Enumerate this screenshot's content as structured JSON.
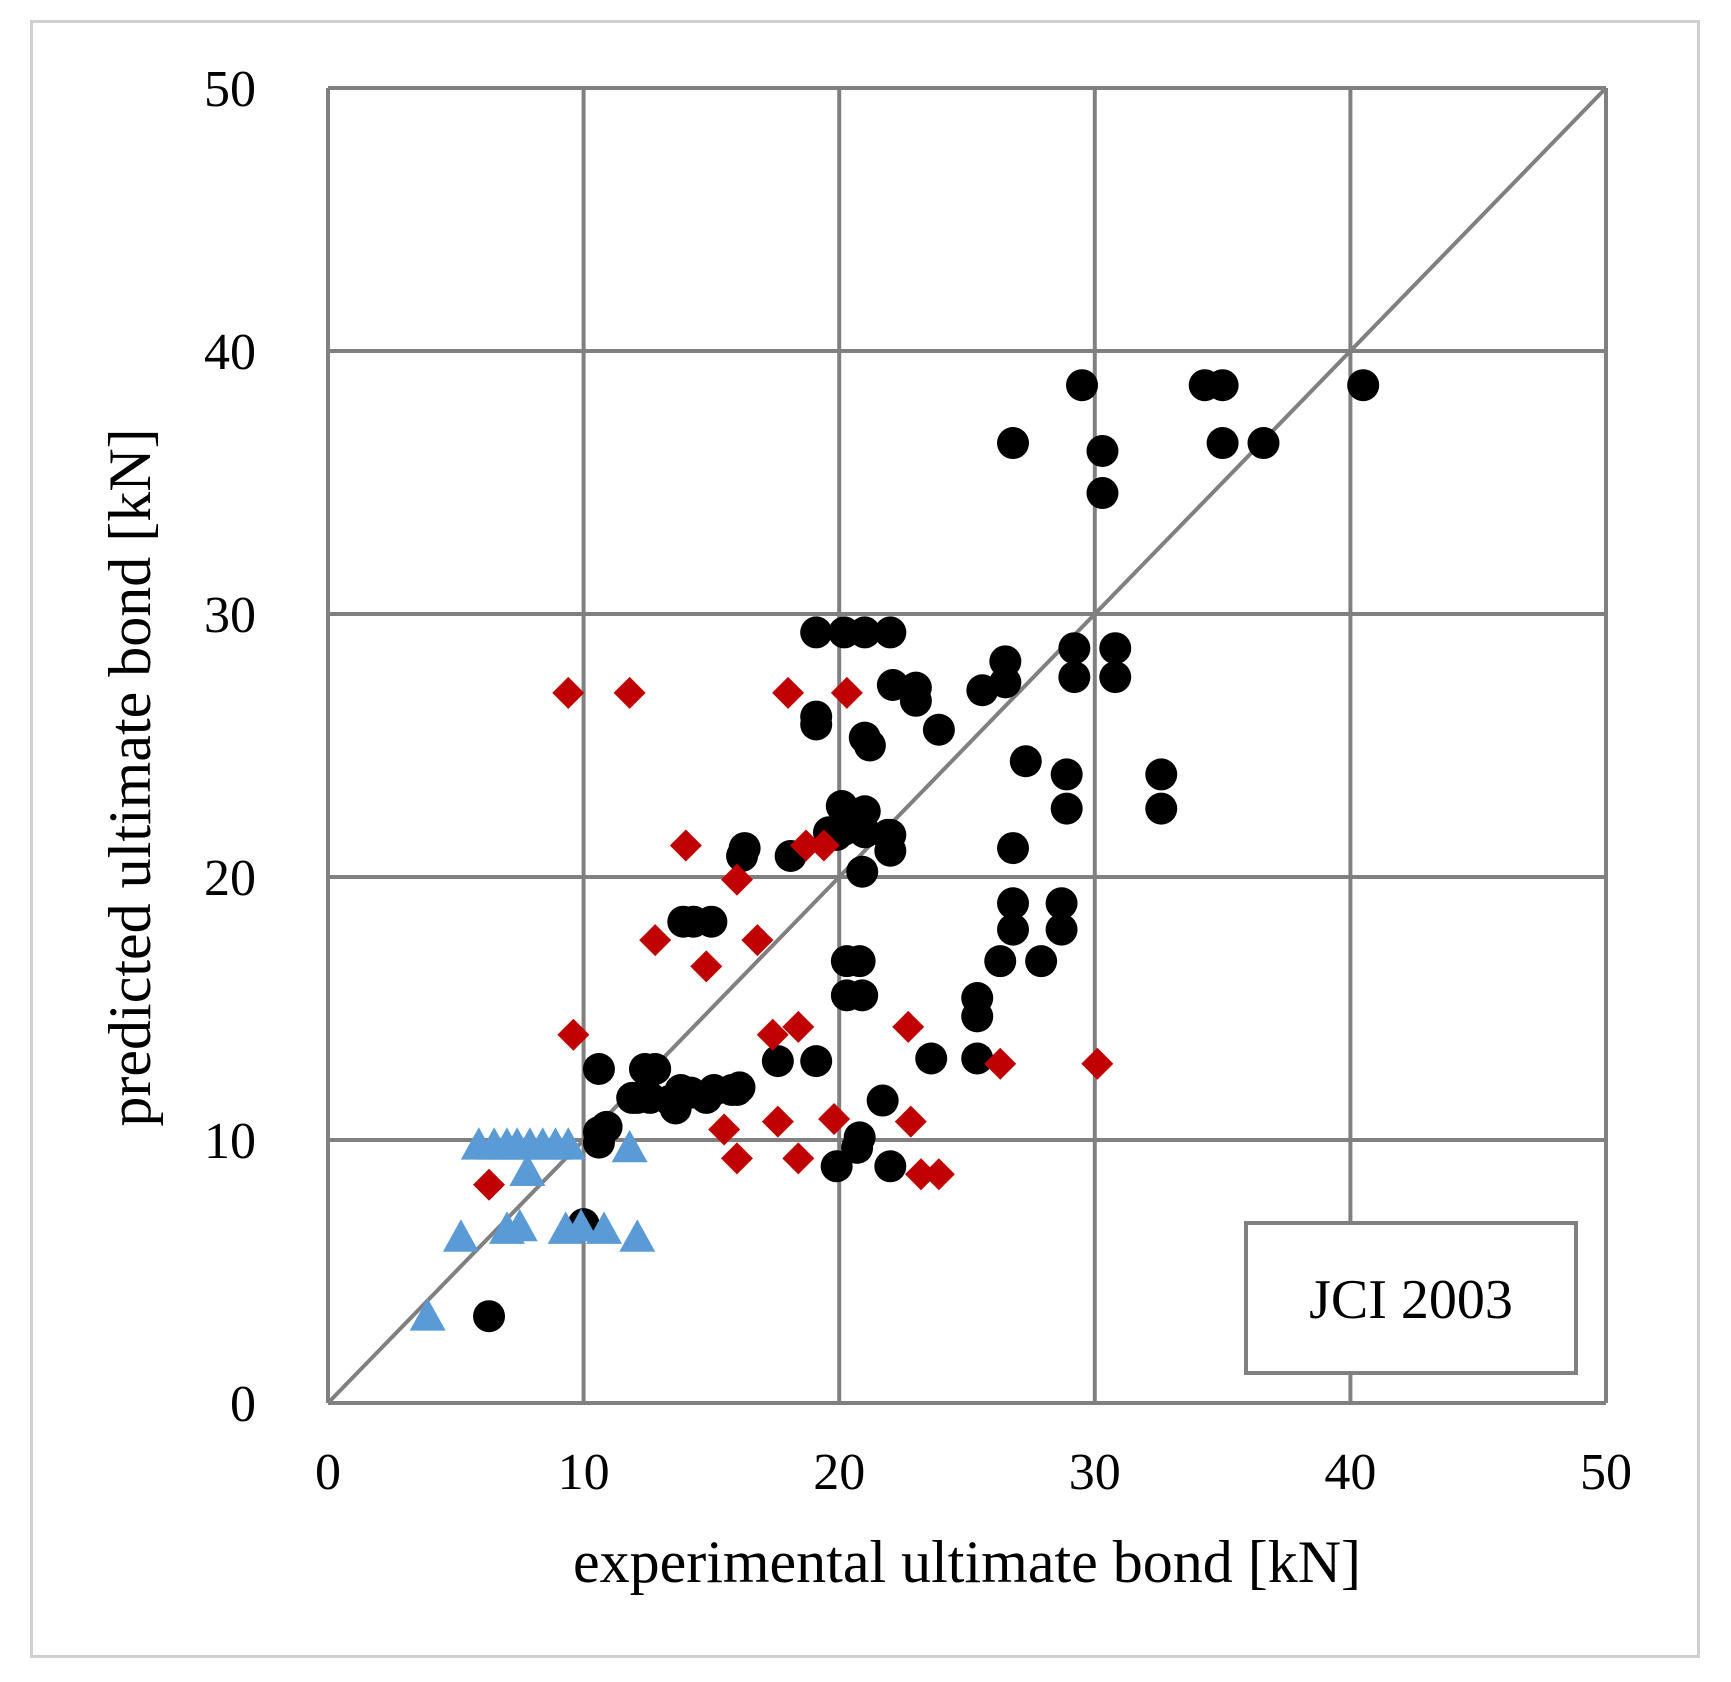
{
  "chart_data": {
    "type": "scatter",
    "title": "",
    "xlabel": "experimental ultimate bond [kN]",
    "ylabel": "predicted ultimate bond [kN]",
    "xlim": [
      0,
      50
    ],
    "ylim": [
      0,
      50
    ],
    "x_ticks": [
      "0",
      "10",
      "20",
      "30",
      "40",
      "50"
    ],
    "y_ticks": [
      "0",
      "10",
      "20",
      "30",
      "40",
      "50"
    ],
    "tick_values": [
      0,
      10,
      20,
      30,
      40,
      50
    ],
    "grid": true,
    "reference_line": {
      "name": "1:1 line",
      "from": [
        0,
        0
      ],
      "to": [
        50,
        50
      ],
      "color": "#808080"
    },
    "annotation": "JCI 2003",
    "annotation_position": "bottom-right",
    "series": [
      {
        "name": "circles",
        "marker": "circle",
        "color": "#000000",
        "points": [
          [
            6.3,
            3.3
          ],
          [
            10.0,
            6.8
          ],
          [
            10.6,
            12.7
          ],
          [
            10.6,
            10.3
          ],
          [
            10.9,
            10.5
          ],
          [
            10.6,
            9.9
          ],
          [
            11.9,
            11.6
          ],
          [
            12.1,
            11.6
          ],
          [
            12.4,
            12.7
          ],
          [
            12.6,
            11.6
          ],
          [
            12.8,
            12.7
          ],
          [
            13.4,
            11.5
          ],
          [
            13.8,
            11.9
          ],
          [
            14.2,
            11.8
          ],
          [
            14.8,
            11.6
          ],
          [
            15.1,
            11.9
          ],
          [
            13.6,
            11.2
          ],
          [
            15.8,
            11.9
          ],
          [
            16.0,
            11.9
          ],
          [
            16.1,
            12.0
          ],
          [
            13.9,
            18.3
          ],
          [
            14.3,
            18.3
          ],
          [
            15.0,
            18.3
          ],
          [
            16.2,
            20.8
          ],
          [
            16.3,
            21.1
          ],
          [
            17.6,
            13.0
          ],
          [
            19.1,
            13.0
          ],
          [
            18.1,
            20.8
          ],
          [
            19.1,
            29.3
          ],
          [
            19.1,
            26.1
          ],
          [
            19.1,
            25.8
          ],
          [
            19.6,
            21.7
          ],
          [
            20.1,
            22.7
          ],
          [
            20.2,
            21.8
          ],
          [
            19.9,
            21.6
          ],
          [
            20.2,
            29.3
          ],
          [
            20.3,
            16.8
          ],
          [
            20.3,
            15.5
          ],
          [
            19.9,
            9.0
          ],
          [
            20.8,
            16.8
          ],
          [
            20.9,
            15.5
          ],
          [
            20.8,
            10.1
          ],
          [
            20.7,
            9.7
          ],
          [
            20.9,
            20.2
          ],
          [
            21.0,
            29.3
          ],
          [
            21.0,
            25.3
          ],
          [
            21.2,
            25.0
          ],
          [
            21.0,
            22.5
          ],
          [
            21.0,
            21.7
          ],
          [
            21.7,
            11.5
          ],
          [
            21.9,
            21.6
          ],
          [
            22.0,
            21.0
          ],
          [
            22.1,
            27.3
          ],
          [
            22.0,
            9.0
          ],
          [
            22.0,
            29.3
          ],
          [
            22.0,
            21.6
          ],
          [
            23.0,
            27.2
          ],
          [
            23.0,
            26.7
          ],
          [
            23.6,
            13.1
          ],
          [
            23.9,
            25.6
          ],
          [
            25.4,
            15.4
          ],
          [
            25.4,
            14.7
          ],
          [
            25.4,
            13.1
          ],
          [
            25.6,
            27.1
          ],
          [
            26.3,
            16.8
          ],
          [
            26.5,
            28.2
          ],
          [
            26.5,
            27.4
          ],
          [
            26.8,
            36.5
          ],
          [
            26.8,
            21.1
          ],
          [
            26.8,
            19.0
          ],
          [
            26.8,
            18.0
          ],
          [
            27.3,
            24.4
          ],
          [
            27.9,
            16.8
          ],
          [
            28.7,
            19.0
          ],
          [
            28.7,
            18.0
          ],
          [
            28.9,
            22.6
          ],
          [
            28.9,
            23.9
          ],
          [
            29.2,
            28.7
          ],
          [
            29.2,
            27.6
          ],
          [
            29.5,
            38.7
          ],
          [
            30.3,
            36.2
          ],
          [
            30.3,
            34.6
          ],
          [
            30.8,
            28.7
          ],
          [
            30.8,
            27.6
          ],
          [
            32.6,
            23.9
          ],
          [
            32.6,
            22.6
          ],
          [
            34.3,
            38.7
          ],
          [
            35.0,
            38.7
          ],
          [
            35.0,
            36.5
          ],
          [
            36.6,
            36.5
          ],
          [
            40.5,
            38.7
          ]
        ]
      },
      {
        "name": "diamonds",
        "marker": "diamond",
        "color": "#c00000",
        "points": [
          [
            6.3,
            8.3
          ],
          [
            9.4,
            27.0
          ],
          [
            9.6,
            14.0
          ],
          [
            11.8,
            27.0
          ],
          [
            12.8,
            17.6
          ],
          [
            14.0,
            21.2
          ],
          [
            14.8,
            16.6
          ],
          [
            15.5,
            10.4
          ],
          [
            16.0,
            9.3
          ],
          [
            16.0,
            19.9
          ],
          [
            16.8,
            17.6
          ],
          [
            17.4,
            14.0
          ],
          [
            17.6,
            10.7
          ],
          [
            18.0,
            27.0
          ],
          [
            18.4,
            9.3
          ],
          [
            18.4,
            14.3
          ],
          [
            18.7,
            21.2
          ],
          [
            19.4,
            21.2
          ],
          [
            19.8,
            10.8
          ],
          [
            20.3,
            27.0
          ],
          [
            22.7,
            14.3
          ],
          [
            22.8,
            10.7
          ],
          [
            23.2,
            8.7
          ],
          [
            23.9,
            8.7
          ],
          [
            26.3,
            12.9
          ],
          [
            30.1,
            12.9
          ]
        ]
      },
      {
        "name": "triangles",
        "marker": "triangle",
        "color": "#5b9bd5",
        "points": [
          [
            3.9,
            3.3
          ],
          [
            5.2,
            6.3
          ],
          [
            5.9,
            9.8
          ],
          [
            6.5,
            9.8
          ],
          [
            7.0,
            9.8
          ],
          [
            7.4,
            9.8
          ],
          [
            7.9,
            9.8
          ],
          [
            8.4,
            9.8
          ],
          [
            8.9,
            9.8
          ],
          [
            9.4,
            9.8
          ],
          [
            7.8,
            8.8
          ],
          [
            7.0,
            6.6
          ],
          [
            7.5,
            6.7
          ],
          [
            9.3,
            6.6
          ],
          [
            9.9,
            6.7
          ],
          [
            10.8,
            6.6
          ],
          [
            11.8,
            9.7
          ],
          [
            12.1,
            6.3
          ]
        ]
      }
    ]
  }
}
